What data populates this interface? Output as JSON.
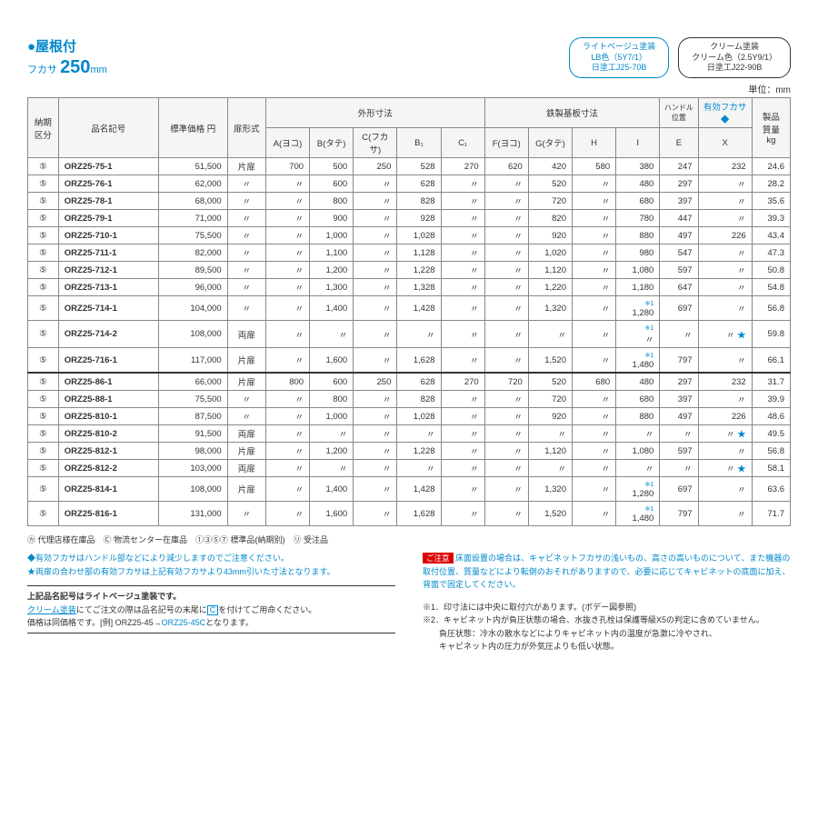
{
  "title": {
    "main": "●屋根付",
    "sub_prefix": "フカサ",
    "sub_value": "250",
    "sub_unit": "mm"
  },
  "badges": {
    "blue": {
      "l1": "ライトベージュ塗装",
      "l2": "LB色（5Y7/1）",
      "l3": "日塗工J25-70B"
    },
    "gray": {
      "l1": "クリーム塗装",
      "l2": "クリーム色（2.5Y9/1）",
      "l3": "日塗工J22-90B"
    }
  },
  "unit_label": "単位：mm",
  "headers": {
    "kubun": "納期\n区分",
    "model": "品名記号",
    "price": "標準価格 円",
    "door": "扉形式",
    "group_ext": "外形寸法",
    "A": "A(ヨコ)",
    "B": "B(タテ)",
    "C": "C(フカサ)",
    "B1": "B₁",
    "C1": "C₁",
    "group_base": "鉄製基板寸法",
    "F": "F(ヨコ)",
    "G": "G(タテ)",
    "H": "H",
    "I": "I",
    "handle": "ハンドル\n位置",
    "E": "E",
    "fukasa": "有効フカサ",
    "X": "X",
    "kg": "製品\n質量\nkg"
  },
  "ditto": "〃",
  "rows": [
    {
      "k": "⑤",
      "m": "ORZ25-75-1",
      "p": "51,500",
      "d": "片扉",
      "A": "700",
      "B": "500",
      "C": "250",
      "B1": "528",
      "C1": "270",
      "F": "620",
      "G": "420",
      "H": "580",
      "I": "380",
      "E": "247",
      "X": "232",
      "kg": "24.6"
    },
    {
      "k": "⑤",
      "m": "ORZ25-76-1",
      "p": "62,000",
      "d": "〃",
      "A": "〃",
      "B": "600",
      "C": "〃",
      "B1": "628",
      "C1": "〃",
      "F": "〃",
      "G": "520",
      "H": "〃",
      "I": "480",
      "E": "297",
      "X": "〃",
      "kg": "28.2"
    },
    {
      "k": "⑤",
      "m": "ORZ25-78-1",
      "p": "68,000",
      "d": "〃",
      "A": "〃",
      "B": "800",
      "C": "〃",
      "B1": "828",
      "C1": "〃",
      "F": "〃",
      "G": "720",
      "H": "〃",
      "I": "680",
      "E": "397",
      "X": "〃",
      "kg": "35.6"
    },
    {
      "k": "⑤",
      "m": "ORZ25-79-1",
      "p": "71,000",
      "d": "〃",
      "A": "〃",
      "B": "900",
      "C": "〃",
      "B1": "928",
      "C1": "〃",
      "F": "〃",
      "G": "820",
      "H": "〃",
      "I": "780",
      "E": "447",
      "X": "〃",
      "kg": "39.3"
    },
    {
      "k": "⑤",
      "m": "ORZ25-710-1",
      "p": "75,500",
      "d": "〃",
      "A": "〃",
      "B": "1,000",
      "C": "〃",
      "B1": "1,028",
      "C1": "〃",
      "F": "〃",
      "G": "920",
      "H": "〃",
      "I": "880",
      "E": "497",
      "X": "226",
      "kg": "43.4"
    },
    {
      "k": "⑤",
      "m": "ORZ25-711-1",
      "p": "82,000",
      "d": "〃",
      "A": "〃",
      "B": "1,100",
      "C": "〃",
      "B1": "1,128",
      "C1": "〃",
      "F": "〃",
      "G": "1,020",
      "H": "〃",
      "I": "980",
      "E": "547",
      "X": "〃",
      "kg": "47.3"
    },
    {
      "k": "⑤",
      "m": "ORZ25-712-1",
      "p": "89,500",
      "d": "〃",
      "A": "〃",
      "B": "1,200",
      "C": "〃",
      "B1": "1,228",
      "C1": "〃",
      "F": "〃",
      "G": "1,120",
      "H": "〃",
      "I": "1,080",
      "E": "597",
      "X": "〃",
      "kg": "50.8"
    },
    {
      "k": "⑤",
      "m": "ORZ25-713-1",
      "p": "96,000",
      "d": "〃",
      "A": "〃",
      "B": "1,300",
      "C": "〃",
      "B1": "1,328",
      "C1": "〃",
      "F": "〃",
      "G": "1,220",
      "H": "〃",
      "I": "1,180",
      "E": "647",
      "X": "〃",
      "kg": "54.8"
    },
    {
      "k": "⑤",
      "m": "ORZ25-714-1",
      "p": "104,000",
      "d": "〃",
      "A": "〃",
      "B": "1,400",
      "C": "〃",
      "B1": "1,428",
      "C1": "〃",
      "F": "〃",
      "G": "1,320",
      "H": "〃",
      "I": "1,280",
      "I_note": "※1",
      "E": "697",
      "X": "〃",
      "kg": "56.8"
    },
    {
      "k": "⑤",
      "m": "ORZ25-714-2",
      "p": "108,000",
      "d": "両扉",
      "A": "〃",
      "B": "〃",
      "C": "〃",
      "B1": "〃",
      "C1": "〃",
      "F": "〃",
      "G": "〃",
      "H": "〃",
      "I": "〃",
      "I_note": "※1",
      "E": "〃",
      "X": "〃",
      "X_star": true,
      "kg": "59.8"
    },
    {
      "k": "⑤",
      "m": "ORZ25-716-1",
      "p": "117,000",
      "d": "片扉",
      "A": "〃",
      "B": "1,600",
      "C": "〃",
      "B1": "1,628",
      "C1": "〃",
      "F": "〃",
      "G": "1,520",
      "H": "〃",
      "I": "1,480",
      "I_note": "※1",
      "E": "797",
      "X": "〃",
      "kg": "66.1"
    },
    {
      "sec": true,
      "k": "⑤",
      "m": "ORZ25-86-1",
      "p": "66,000",
      "d": "片扉",
      "A": "800",
      "B": "600",
      "C": "250",
      "B1": "628",
      "C1": "270",
      "F": "720",
      "G": "520",
      "H": "680",
      "I": "480",
      "E": "297",
      "X": "232",
      "kg": "31.7"
    },
    {
      "k": "⑤",
      "m": "ORZ25-88-1",
      "p": "75,500",
      "d": "〃",
      "A": "〃",
      "B": "800",
      "C": "〃",
      "B1": "828",
      "C1": "〃",
      "F": "〃",
      "G": "720",
      "H": "〃",
      "I": "680",
      "E": "397",
      "X": "〃",
      "kg": "39.9"
    },
    {
      "k": "⑤",
      "m": "ORZ25-810-1",
      "p": "87,500",
      "d": "〃",
      "A": "〃",
      "B": "1,000",
      "C": "〃",
      "B1": "1,028",
      "C1": "〃",
      "F": "〃",
      "G": "920",
      "H": "〃",
      "I": "880",
      "E": "497",
      "X": "226",
      "kg": "48.6"
    },
    {
      "k": "⑤",
      "m": "ORZ25-810-2",
      "p": "91,500",
      "d": "両扉",
      "A": "〃",
      "B": "〃",
      "C": "〃",
      "B1": "〃",
      "C1": "〃",
      "F": "〃",
      "G": "〃",
      "H": "〃",
      "I": "〃",
      "E": "〃",
      "X": "〃",
      "X_star": true,
      "kg": "49.5"
    },
    {
      "k": "⑤",
      "m": "ORZ25-812-1",
      "p": "98,000",
      "d": "片扉",
      "A": "〃",
      "B": "1,200",
      "C": "〃",
      "B1": "1,228",
      "C1": "〃",
      "F": "〃",
      "G": "1,120",
      "H": "〃",
      "I": "1,080",
      "E": "597",
      "X": "〃",
      "kg": "56.8"
    },
    {
      "k": "⑤",
      "m": "ORZ25-812-2",
      "p": "103,000",
      "d": "両扉",
      "A": "〃",
      "B": "〃",
      "C": "〃",
      "B1": "〃",
      "C1": "〃",
      "F": "〃",
      "G": "〃",
      "H": "〃",
      "I": "〃",
      "E": "〃",
      "X": "〃",
      "X_star": true,
      "kg": "58.1"
    },
    {
      "k": "⑤",
      "m": "ORZ25-814-1",
      "p": "108,000",
      "d": "片扉",
      "A": "〃",
      "B": "1,400",
      "C": "〃",
      "B1": "1,428",
      "C1": "〃",
      "F": "〃",
      "G": "1,320",
      "H": "〃",
      "I": "1,280",
      "I_note": "※1",
      "E": "697",
      "X": "〃",
      "kg": "63.6"
    },
    {
      "k": "⑤",
      "m": "ORZ25-816-1",
      "p": "131,000",
      "d": "〃",
      "A": "〃",
      "B": "1,600",
      "C": "〃",
      "B1": "1,628",
      "C1": "〃",
      "F": "〃",
      "G": "1,520",
      "H": "〃",
      "I": "1,480",
      "I_note": "※1",
      "E": "797",
      "X": "〃",
      "kg": "71.7"
    }
  ],
  "legend": "㋕ 代理店様在庫品　Ⓒ 物流センター在庫品　①③⑤⑦ 標準品(納期別)　㋷ 受注品",
  "bullets": {
    "b1": "◆有効フカサはハンドル部などにより減少しますのでご注意ください。",
    "b2": "★両扉の合わせ部の有効フカサは上記有効フカサより43mm引いた寸法となります。"
  },
  "cream_note": {
    "l1": "上記品名記号はライトベージュ塗装です。",
    "l2a": "クリーム塗装",
    "l2b": "にてご注文の際は品名記号の末尾に",
    "l2c": "C",
    "l2d": "を付けてご用命ください。",
    "l3a": "価格は同価格です。[例] ORZ25-45→",
    "l3b": "ORZ25-45C",
    "l3c": "となります。"
  },
  "caution": {
    "label": "ご注意",
    "text": "床面設置の場合は、キャビネットフカサの浅いもの、高さの高いものについて、また機器の取付位置、質量などにより転倒のおそれがありますので、必要に応じてキャビネットの底面に加え、背面で固定してください。"
  },
  "footnotes": {
    "f1": "※1．印寸法には中央に取付穴があります。(ボデー図参照)",
    "f2": "※2．キャビネット内が負圧状態の場合、水抜き孔栓は保護等級X5の判定に含めていません。\n　　負圧状態：冷水の散水などによりキャビネット内の温度が急激に冷やされ、\n　　キャビネット内の圧力が外気圧よりも低い状態。"
  }
}
